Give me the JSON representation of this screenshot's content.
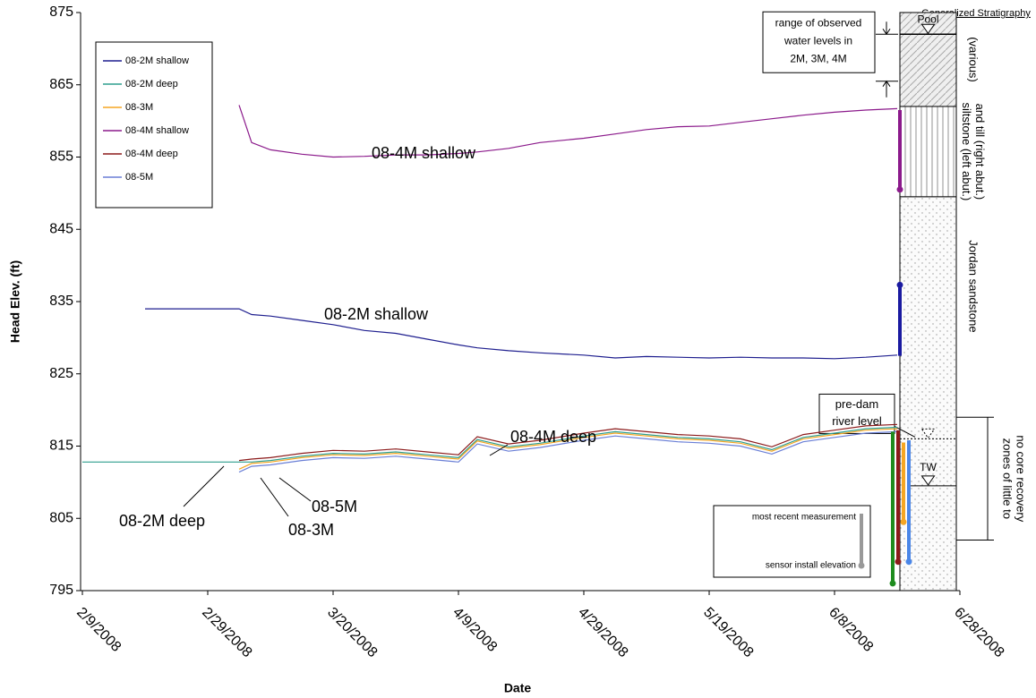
{
  "chart_data": {
    "type": "line",
    "ylabel": "Head Elev. (ft)",
    "xlabel": "Date",
    "xlim": [
      "2/9/2008",
      "6/28/2008"
    ],
    "xticks": [
      "2/9/2008",
      "2/29/2008",
      "3/20/2008",
      "4/9/2008",
      "4/29/2008",
      "5/19/2008",
      "6/8/2008",
      "6/28/2008"
    ],
    "ylim": [
      795,
      875
    ],
    "yticks": [
      795,
      805,
      815,
      825,
      835,
      845,
      855,
      865,
      875
    ],
    "grid": false,
    "legend": "upper left",
    "x": [
      "2/9/2008",
      "2/19/2008",
      "2/29/2008",
      "3/5/2008",
      "3/7/2008",
      "3/10/2008",
      "3/15/2008",
      "3/20/2008",
      "3/25/2008",
      "3/30/2008",
      "4/4/2008",
      "4/9/2008",
      "4/12/2008",
      "4/17/2008",
      "4/22/2008",
      "4/29/2008",
      "5/4/2008",
      "5/9/2008",
      "5/14/2008",
      "5/19/2008",
      "5/24/2008",
      "5/29/2008",
      "6/3/2008",
      "6/8/2008",
      "6/13/2008",
      "6/18/2008"
    ],
    "series": [
      {
        "name": "08-2M shallow",
        "color": "#1f1f8f",
        "values": [
          null,
          834.0,
          834.0,
          834.0,
          833.2,
          833.0,
          832.4,
          831.8,
          831.0,
          830.6,
          829.8,
          829.0,
          828.6,
          828.2,
          827.9,
          827.6,
          827.2,
          827.4,
          827.3,
          827.2,
          827.3,
          827.2,
          827.2,
          827.1,
          827.3,
          827.6
        ]
      },
      {
        "name": "08-2M deep",
        "color": "#2e9e8e",
        "values": [
          812.8,
          812.8,
          812.8,
          812.8,
          812.8,
          813.0,
          813.6,
          814.0,
          813.9,
          814.2,
          813.8,
          813.4,
          815.9,
          814.9,
          815.4,
          816.4,
          817.0,
          816.6,
          816.2,
          816.0,
          815.6,
          814.5,
          816.2,
          816.8,
          817.4,
          817.6
        ]
      },
      {
        "name": "08-3M",
        "color": "#f5a623",
        "values": [
          null,
          null,
          null,
          811.8,
          812.6,
          812.8,
          813.4,
          813.8,
          813.7,
          814.0,
          813.6,
          813.2,
          815.7,
          814.7,
          815.2,
          816.2,
          816.8,
          816.4,
          816.0,
          815.8,
          815.4,
          814.3,
          816.0,
          816.6,
          817.2,
          817.4
        ]
      },
      {
        "name": "08-4M shallow",
        "color": "#8b1a8b",
        "values": [
          null,
          null,
          null,
          862.2,
          857.0,
          856.0,
          855.4,
          855.0,
          855.1,
          855.3,
          855.3,
          855.5,
          855.7,
          856.2,
          857.0,
          857.6,
          858.2,
          858.8,
          859.2,
          859.3,
          859.8,
          860.3,
          860.8,
          861.2,
          861.5,
          861.7
        ]
      },
      {
        "name": "08-4M deep",
        "color": "#8b1a1a",
        "values": [
          null,
          null,
          null,
          813.0,
          813.2,
          813.4,
          814.0,
          814.4,
          814.3,
          814.6,
          814.2,
          813.8,
          816.3,
          815.3,
          815.8,
          816.8,
          817.4,
          817.0,
          816.6,
          816.4,
          816.0,
          814.9,
          816.6,
          817.2,
          817.8,
          818.0
        ]
      },
      {
        "name": "08-5M",
        "color": "#6a7fd6",
        "values": [
          null,
          null,
          null,
          811.4,
          812.2,
          812.4,
          813.0,
          813.4,
          813.3,
          813.6,
          813.2,
          812.8,
          815.3,
          814.3,
          814.8,
          815.8,
          816.4,
          816.0,
          815.6,
          815.4,
          815.0,
          813.9,
          815.6,
          816.2,
          816.8,
          817.0
        ]
      }
    ],
    "annotations": [
      "08-4M shallow",
      "08-2M shallow",
      "08-4M deep",
      "08-2M deep",
      "08-5M",
      "08-3M"
    ],
    "sensors": [
      {
        "color": "#8b1a8b",
        "recent": 861.5,
        "install": 850.5
      },
      {
        "color": "#1a1aa0",
        "recent": 827.5,
        "install": 837.3
      },
      {
        "color": "#1e8c1e",
        "recent": 817.0,
        "install": 796.0
      },
      {
        "color": "#8b1a1a",
        "recent": 817.2,
        "install": 799.0
      },
      {
        "color": "#f5a623",
        "recent": 815.5,
        "install": 804.5
      },
      {
        "color": "#4a86e8",
        "recent": 815.8,
        "install": 799.0
      }
    ],
    "key": {
      "recent": "most recent measurement",
      "install": "sensor install elevation"
    },
    "stratigraphy": {
      "title": "Generalized Stratigraphy",
      "layers": [
        {
          "label": [
            "(various)"
          ],
          "top": 875,
          "bottom": 862
        },
        {
          "label": [
            "siltstone (left abut.)",
            "and till (right abut.)"
          ],
          "top": 862,
          "bottom": 849.5
        },
        {
          "label": [
            "Jordan sandstone"
          ],
          "top": 849.5,
          "bottom": 795
        }
      ],
      "pool": {
        "label": "Pool",
        "value": 872
      },
      "tailwater": {
        "label": "TW",
        "value": 809.5
      },
      "pre_dam": {
        "label": [
          "pre-dam",
          "river level"
        ],
        "value": 816
      },
      "core_loss": {
        "label": [
          "zones of little to",
          "no core recovery"
        ],
        "top": 819,
        "bottom": 802
      },
      "range": {
        "label": [
          "range of observed",
          "water levels in",
          "2M, 3M, 4M"
        ],
        "top": 872,
        "bottom": 865.5
      }
    }
  }
}
